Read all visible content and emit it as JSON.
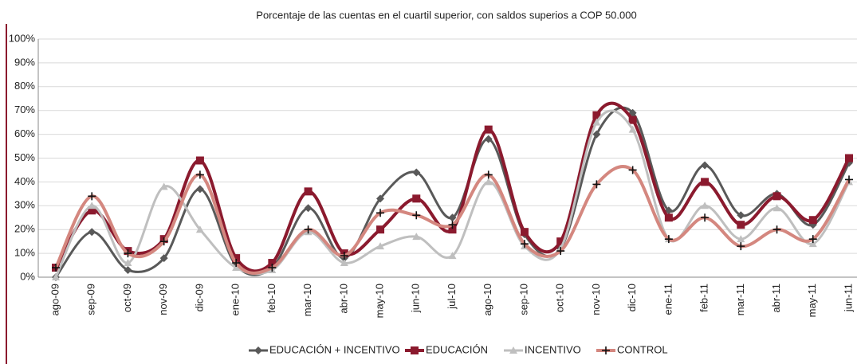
{
  "chart_data": {
    "type": "line",
    "title": "Porcentaje de las cuentas en el cuartil superior, con saldos superios a COP 50.000",
    "categories": [
      "ago-09",
      "sep-09",
      "oct-09",
      "nov-09",
      "dic-09",
      "ene-10",
      "feb-10",
      "mar-10",
      "abr-10",
      "may-10",
      "jun-10",
      "jul-10",
      "ago-10",
      "sep-10",
      "oct-10",
      "nov-10",
      "dic-10",
      "ene-11",
      "feb-11",
      "mar-11",
      "abr-11",
      "may-11",
      "jun-11"
    ],
    "series": [
      {
        "name": "EDUCACIÓN + INCENTIVO",
        "color": "#595959",
        "marker": "diamond",
        "values": [
          0,
          19,
          3,
          8,
          37,
          5,
          4,
          29,
          8,
          33,
          44,
          25,
          58,
          18,
          12,
          60,
          69,
          28,
          47,
          26,
          35,
          22,
          48
        ]
      },
      {
        "name": "EDUCACIÓN",
        "color": "#8b1a2e",
        "marker": "square",
        "values": [
          4,
          28,
          11,
          16,
          49,
          8,
          6,
          36,
          10,
          20,
          33,
          20,
          62,
          19,
          15,
          68,
          66,
          25,
          40,
          22,
          34,
          24,
          50
        ]
      },
      {
        "name": "INCENTIVO",
        "color": "#bfbfbf",
        "marker": "triangle",
        "values": [
          0,
          30,
          6,
          38,
          20,
          4,
          3,
          19,
          6,
          13,
          17,
          9,
          40,
          13,
          12,
          65,
          62,
          16,
          30,
          16,
          29,
          14,
          40
        ]
      },
      {
        "name": "CONTROL",
        "color": "#d4877f",
        "marker": "plus",
        "values": [
          4,
          34,
          10,
          15,
          43,
          6,
          4,
          20,
          9,
          27,
          26,
          22,
          43,
          14,
          11,
          39,
          45,
          16,
          25,
          13,
          20,
          16,
          41
        ]
      }
    ],
    "ylim": [
      0,
      100
    ],
    "yticks": [
      {
        "value": 0,
        "label": "0%"
      },
      {
        "value": 10,
        "label": "10%"
      },
      {
        "value": 20,
        "label": "20%"
      },
      {
        "value": 30,
        "label": "30%"
      },
      {
        "value": 40,
        "label": "40%"
      },
      {
        "value": 50,
        "label": "50%"
      },
      {
        "value": 60,
        "label": "60%"
      },
      {
        "value": 70,
        "label": "70%"
      },
      {
        "value": 80,
        "label": "80%"
      },
      {
        "value": 90,
        "label": "90%"
      },
      {
        "value": 100,
        "label": "100%"
      }
    ],
    "grid": true,
    "smooth": true,
    "legend": "bottom"
  }
}
